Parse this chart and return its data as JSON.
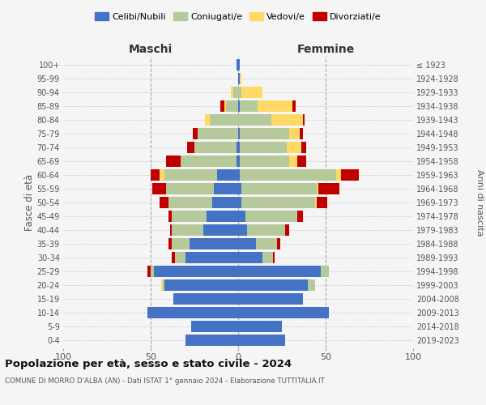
{
  "age_groups": [
    "0-4",
    "5-9",
    "10-14",
    "15-19",
    "20-24",
    "25-29",
    "30-34",
    "35-39",
    "40-44",
    "45-49",
    "50-54",
    "55-59",
    "60-64",
    "65-69",
    "70-74",
    "75-79",
    "80-84",
    "85-89",
    "90-94",
    "95-99",
    "100+"
  ],
  "birth_years": [
    "2019-2023",
    "2014-2018",
    "2009-2013",
    "2004-2008",
    "1999-2003",
    "1994-1998",
    "1989-1993",
    "1984-1988",
    "1979-1983",
    "1974-1978",
    "1969-1973",
    "1964-1968",
    "1959-1963",
    "1954-1958",
    "1949-1953",
    "1944-1948",
    "1939-1943",
    "1934-1938",
    "1929-1933",
    "1924-1928",
    "≤ 1923"
  ],
  "males": {
    "celibi": [
      30,
      27,
      52,
      37,
      42,
      48,
      30,
      28,
      20,
      18,
      15,
      14,
      12,
      1,
      1,
      0,
      0,
      0,
      0,
      0,
      1
    ],
    "coniugati": [
      0,
      0,
      0,
      0,
      1,
      2,
      6,
      10,
      18,
      20,
      25,
      27,
      30,
      32,
      24,
      23,
      16,
      7,
      3,
      0,
      0
    ],
    "vedovi": [
      0,
      0,
      0,
      0,
      1,
      0,
      0,
      0,
      0,
      0,
      0,
      0,
      3,
      0,
      0,
      0,
      3,
      1,
      1,
      0,
      0
    ],
    "divorziati": [
      0,
      0,
      0,
      0,
      0,
      2,
      2,
      2,
      1,
      2,
      5,
      8,
      5,
      8,
      4,
      3,
      0,
      2,
      0,
      0,
      0
    ]
  },
  "females": {
    "nubili": [
      27,
      25,
      52,
      37,
      40,
      47,
      14,
      10,
      5,
      4,
      2,
      2,
      1,
      1,
      1,
      1,
      0,
      1,
      0,
      1,
      1
    ],
    "coniugate": [
      0,
      0,
      0,
      0,
      4,
      5,
      6,
      12,
      22,
      30,
      42,
      43,
      55,
      28,
      27,
      28,
      19,
      10,
      2,
      0,
      0
    ],
    "vedove": [
      0,
      0,
      0,
      0,
      0,
      0,
      0,
      0,
      0,
      0,
      1,
      1,
      3,
      5,
      8,
      6,
      18,
      20,
      12,
      1,
      0
    ],
    "divorziate": [
      0,
      0,
      0,
      0,
      0,
      0,
      1,
      2,
      2,
      3,
      6,
      12,
      10,
      5,
      3,
      2,
      1,
      2,
      0,
      0,
      0
    ]
  },
  "colors": {
    "celibi_nubili": "#4472c4",
    "coniugati": "#b5c99a",
    "vedovi": "#ffd966",
    "divorziati": "#c00000"
  },
  "title": "Popolazione per età, sesso e stato civile - 2024",
  "subtitle": "COMUNE DI MORRO D'ALBA (AN) - Dati ISTAT 1° gennaio 2024 - Elaborazione TUTTITALIA.IT",
  "xlabel_left": "Maschi",
  "xlabel_right": "Femmine",
  "ylabel_left": "Fasce di età",
  "ylabel_right": "Anni di nascita",
  "xlim": 100,
  "legend_labels": [
    "Celibi/Nubili",
    "Coniugati/e",
    "Vedovi/e",
    "Divorziati/e"
  ],
  "background_color": "#f5f5f5",
  "grid_color": "#cccccc"
}
